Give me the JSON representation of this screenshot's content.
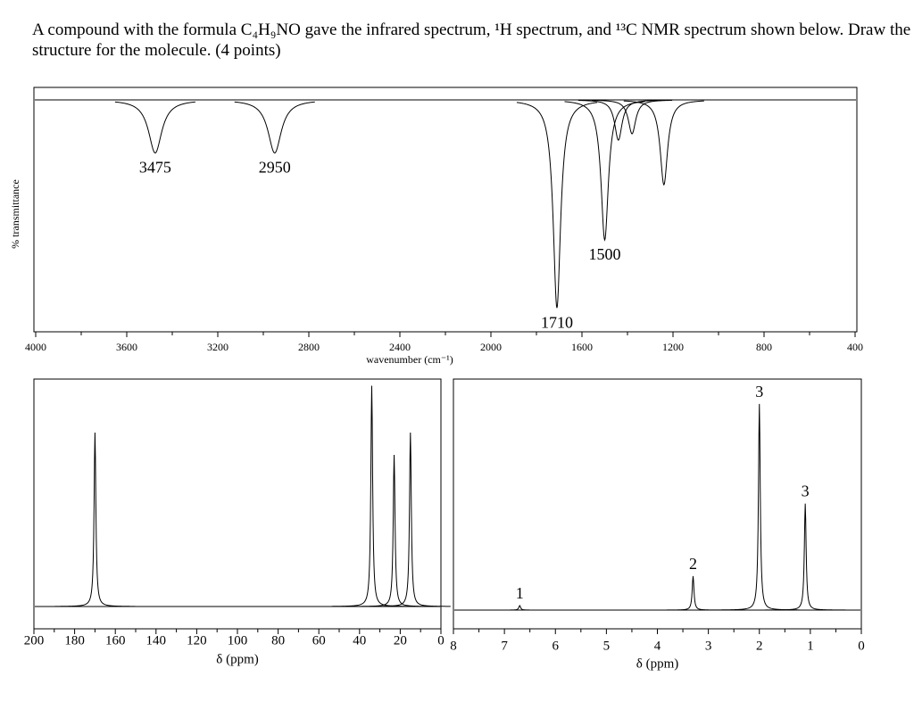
{
  "question": "A compound with the formula C₄H₉NO gave the infrared spectrum, ¹H spectrum, and ¹³C NMR spectrum shown below. Draw the structure for the molecule. (4 points)",
  "chart_data": [
    {
      "type": "ir",
      "ylabel": "% transmittance",
      "xlabel": "wavenumber (cm⁻¹)",
      "xlim": [
        4000,
        400
      ],
      "xticks": [
        4000,
        3600,
        3200,
        2800,
        2400,
        2000,
        1600,
        1200,
        800,
        400
      ],
      "ylim": [
        0,
        100
      ],
      "x": [
        3475,
        2950,
        1710,
        1500
      ],
      "values": [
        75,
        75,
        2,
        34
      ],
      "other_peaks": {
        "x": [
          1440,
          1380,
          1240
        ],
        "values": [
          81,
          84,
          60
        ]
      }
    },
    {
      "type": "nmr",
      "xlabel": "δ (ppm)",
      "xlim": [
        200,
        0
      ],
      "xticks": [
        200,
        180,
        160,
        140,
        120,
        100,
        80,
        60,
        40,
        20,
        0
      ],
      "ylim": [
        0,
        100
      ],
      "x": [
        170,
        34,
        23,
        15
      ],
      "values": [
        78,
        99,
        68,
        78
      ]
    },
    {
      "type": "nmr",
      "xlabel": "δ (ppm)",
      "xlim": [
        8,
        0
      ],
      "xticks": [
        8,
        7,
        6,
        5,
        4,
        3,
        2,
        1,
        0
      ],
      "ylim": [
        0,
        100
      ],
      "x": [
        6.7,
        3.3,
        2.0,
        1.1
      ],
      "values": [
        2,
        15,
        91,
        47
      ],
      "integrals": [
        1,
        2,
        3,
        3
      ]
    }
  ]
}
